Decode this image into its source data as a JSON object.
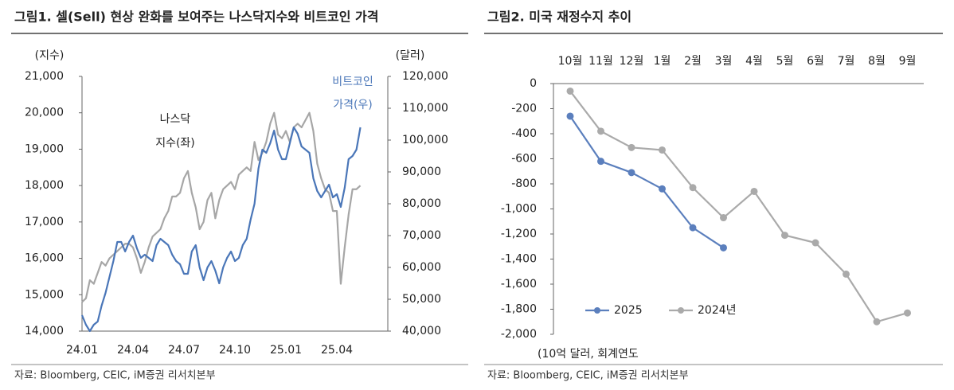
{
  "chart_data": [
    {
      "type": "line",
      "title": "그림1.  셀(Sell) 현상 완화를 보여주는 나스닥지수와 비트코인 가격",
      "source": "자료: Bloomberg, CEIC, iM증권 리서치본부",
      "y_label": "(지수)",
      "y2_label": "(달러)",
      "annotations": [
        "나스닥",
        "지수(좌)",
        "비트코인",
        "가격(우)"
      ],
      "categories": [
        "24.01",
        null,
        null,
        null,
        null,
        null,
        null,
        null,
        null,
        null,
        null,
        null,
        null,
        "24.04",
        null,
        null,
        null,
        null,
        null,
        null,
        null,
        null,
        null,
        null,
        null,
        null,
        "24.07",
        null,
        null,
        null,
        null,
        null,
        null,
        null,
        null,
        null,
        null,
        null,
        null,
        "24.10",
        null,
        null,
        null,
        null,
        null,
        null,
        null,
        null,
        null,
        null,
        null,
        null,
        "25.01",
        null,
        null,
        null,
        null,
        null,
        null,
        null,
        null,
        null,
        null,
        null,
        null,
        "25.04",
        null,
        null,
        null,
        null,
        null,
        null
      ],
      "ylim": [
        14000,
        21000
      ],
      "yticks": [
        {
          "value": 14000,
          "label": "14,000"
        },
        {
          "value": 15000,
          "label": "15,000"
        },
        {
          "value": 16000,
          "label": "16,000"
        },
        {
          "value": 17000,
          "label": "17,000"
        },
        {
          "value": 18000,
          "label": "18,000"
        },
        {
          "value": 19000,
          "label": "19,000"
        },
        {
          "value": 20000,
          "label": "20,000"
        },
        {
          "value": 21000,
          "label": "21,000"
        }
      ],
      "y2lim": [
        40000,
        120000
      ],
      "y2ticks": [
        {
          "value": 40000,
          "label": "40,000"
        },
        {
          "value": 50000,
          "label": "50,000"
        },
        {
          "value": 60000,
          "label": "60,000"
        },
        {
          "value": 70000,
          "label": "70,000"
        },
        {
          "value": 80000,
          "label": "80,000"
        },
        {
          "value": 90000,
          "label": "90,000"
        },
        {
          "value": 100000,
          "label": "100,000"
        },
        {
          "value": 110000,
          "label": "110,000"
        },
        {
          "value": 120000,
          "label": "120,000"
        }
      ],
      "series": [
        {
          "color": "#a6a6a6",
          "values": [
            14800,
            14900,
            15400,
            15300,
            15600,
            15900,
            15800,
            16000,
            16100,
            16200,
            16300,
            16400,
            16400,
            16300,
            16000,
            15600,
            15900,
            16300,
            16600,
            16700,
            16800,
            17100,
            17300,
            17700,
            17700,
            17800,
            18200,
            18400,
            17800,
            17400,
            16800,
            17000,
            17600,
            17800,
            17100,
            17600,
            17900,
            18000,
            18100,
            17900,
            18300,
            18400,
            18500,
            18400,
            19200,
            18700,
            18900,
            19200,
            19700,
            20000,
            19400,
            19300,
            19500,
            19200,
            19600,
            19700,
            19600,
            19800,
            20000,
            19500,
            18600,
            18200,
            17900,
            17800,
            17300,
            17300,
            15300,
            16300,
            17200,
            17900,
            17900,
            18000
          ]
        },
        {
          "color": "#4a76b8",
          "axis": "y2",
          "values": [
            45000,
            42000,
            40000,
            42000,
            43000,
            48000,
            52000,
            57000,
            62000,
            68000,
            68000,
            65000,
            68000,
            70000,
            66000,
            63000,
            64000,
            63000,
            62000,
            67000,
            69000,
            68000,
            67000,
            64000,
            62000,
            61000,
            58000,
            58000,
            65000,
            67000,
            60000,
            56000,
            60000,
            62000,
            59000,
            55000,
            60000,
            63000,
            65000,
            62000,
            63000,
            67000,
            69000,
            75000,
            80000,
            91000,
            97000,
            96000,
            99000,
            103000,
            97000,
            94000,
            94000,
            99000,
            104000,
            102000,
            98000,
            97000,
            96000,
            88000,
            84000,
            82000,
            84000,
            86000,
            82000,
            83000,
            79000,
            85000,
            94000,
            95000,
            97000,
            104000
          ]
        }
      ]
    },
    {
      "type": "line",
      "title": "그림2.  미국 재정수지 추이",
      "source": "자료: Bloomberg, CEIC, iM증권 리서치본부",
      "y_label": "(10억 달러, 회계연도",
      "categories": [
        "10월",
        "11월",
        "12월",
        "1월",
        "2월",
        "3월",
        "4월",
        "5월",
        "6월",
        "7월",
        "8월",
        "9월"
      ],
      "ylim": [
        -2000,
        0
      ],
      "yticks": [
        {
          "value": -2000,
          "label": "-2,000"
        },
        {
          "value": -1800,
          "label": "-1,800"
        },
        {
          "value": -1600,
          "label": "-1,600"
        },
        {
          "value": -1400,
          "label": "-1,400"
        },
        {
          "value": -1200,
          "label": "-1,200"
        },
        {
          "value": -1000,
          "label": "-1,000"
        },
        -800,
        -600,
        -400,
        -200,
        0
      ],
      "series": [
        {
          "name": "2025",
          "color": "#5b7fbd",
          "values": [
            -260,
            -620,
            -710,
            -840,
            -1150,
            -1310,
            null,
            null,
            null,
            null,
            null,
            null
          ]
        },
        {
          "name": "2024년",
          "color": "#aaaaaa",
          "values": [
            -60,
            -380,
            -510,
            -530,
            -830,
            -1070,
            -860,
            -1210,
            -1270,
            -1520,
            -1900,
            -1830
          ]
        }
      ]
    }
  ]
}
